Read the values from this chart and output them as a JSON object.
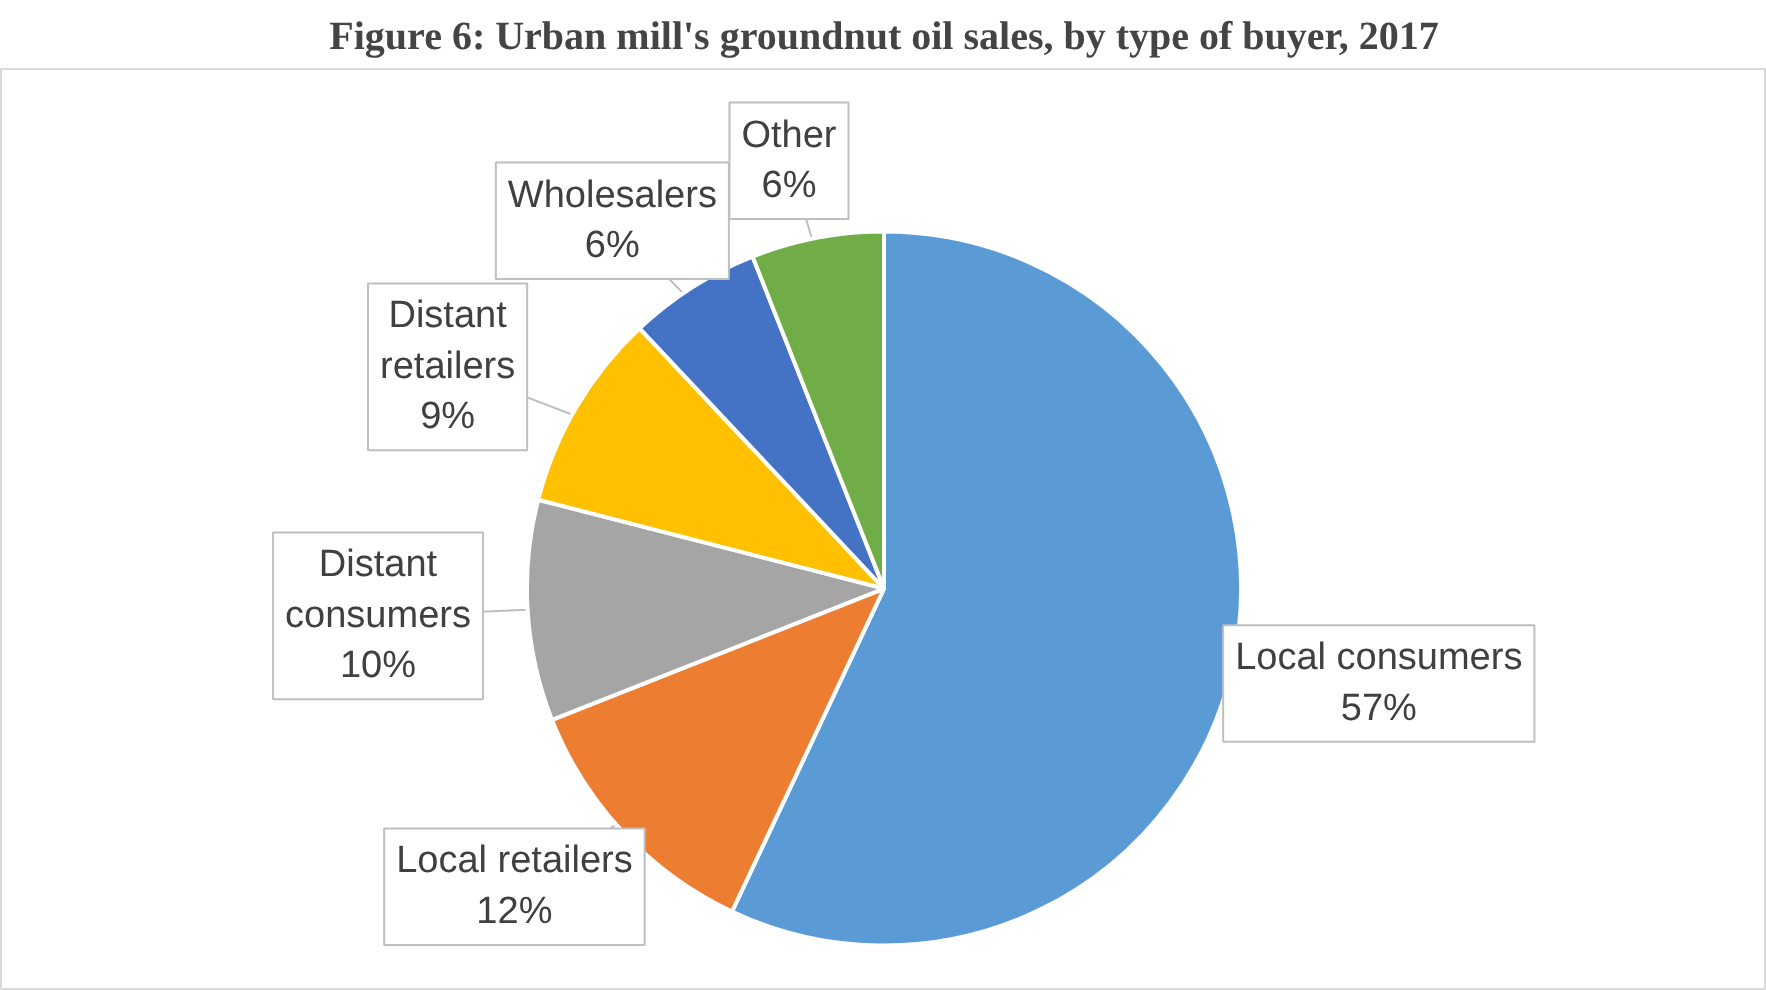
{
  "chart_data": {
    "type": "pie",
    "title": "Figure 6: Urban mill's groundnut oil sales, by type of buyer, 2017",
    "categories": [
      "Local consumers",
      "Local retailers",
      "Distant consumers",
      "Distant retailers",
      "Wholesalers",
      "Other"
    ],
    "values": [
      57,
      12,
      10,
      9,
      6,
      6
    ],
    "colors": [
      "#5b9bd5",
      "#ed7d31",
      "#a5a5a5",
      "#ffc000",
      "#4472c4",
      "#70ad47"
    ],
    "value_labels": [
      "57%",
      "12%",
      "10%",
      "9%",
      "6%",
      "6%"
    ],
    "legend": false
  }
}
